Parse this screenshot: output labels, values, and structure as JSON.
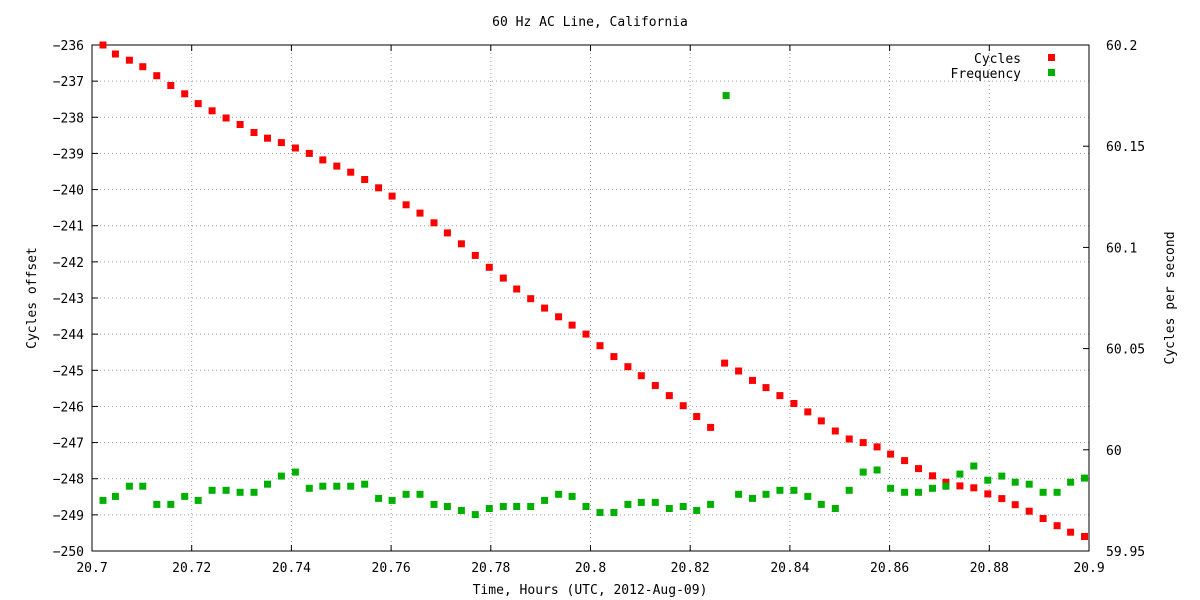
{
  "chart_data": {
    "type": "scatter",
    "title": "60 Hz AC Line, California",
    "xlabel": "Time, Hours (UTC, 2012-Aug-09)",
    "ylabel": "Cycles offset",
    "y2label": "Cycles per second",
    "xlim": [
      20.7,
      20.9
    ],
    "ylim": [
      -250,
      -236
    ],
    "y2lim": [
      59.95,
      60.2
    ],
    "x_ticks": [
      "20.7",
      "20.72",
      "20.74",
      "20.76",
      "20.78",
      "20.8",
      "20.82",
      "20.84",
      "20.86",
      "20.88",
      "20.9"
    ],
    "y_ticks": [
      "-250",
      "-249",
      "-248",
      "-247",
      "-246",
      "-245",
      "-244",
      "-243",
      "-242",
      "-241",
      "-240",
      "-239",
      "-238",
      "-237",
      "-236"
    ],
    "y2_ticks": [
      "59.95",
      "60",
      "60.05",
      "60.1",
      "60.15",
      "60.2"
    ],
    "grid": true,
    "legend": "top-right",
    "series": [
      {
        "name": "Cycles",
        "axis": "left",
        "color": "#ff0000",
        "x": [
          20.7022,
          20.7047,
          20.7075,
          20.7102,
          20.713,
          20.7158,
          20.7186,
          20.7213,
          20.7241,
          20.7269,
          20.7297,
          20.7325,
          20.7352,
          20.738,
          20.7408,
          20.7436,
          20.7463,
          20.7491,
          20.7519,
          20.7547,
          20.7575,
          20.7602,
          20.763,
          20.7658,
          20.7686,
          20.7713,
          20.7741,
          20.7769,
          20.7797,
          20.7825,
          20.7852,
          20.788,
          20.7908,
          20.7936,
          20.7963,
          20.7991,
          20.8019,
          20.8047,
          20.8075,
          20.8102,
          20.813,
          20.8158,
          20.8186,
          20.8213,
          20.8241,
          20.8269,
          20.8297,
          20.8325,
          20.8352,
          20.838,
          20.8408,
          20.8436,
          20.8463,
          20.8491,
          20.8519,
          20.8547,
          20.8575,
          20.8602,
          20.863,
          20.8658,
          20.8686,
          20.8713,
          20.8741,
          20.8769,
          20.8797,
          20.8825,
          20.8852,
          20.888,
          20.8908,
          20.8936,
          20.8963,
          20.8991
        ],
        "y": [
          -236.0,
          -236.25,
          -236.42,
          -236.6,
          -236.85,
          -237.12,
          -237.35,
          -237.62,
          -237.82,
          -238.02,
          -238.2,
          -238.42,
          -238.58,
          -238.7,
          -238.85,
          -239.0,
          -239.18,
          -239.35,
          -239.52,
          -239.72,
          -239.95,
          -240.18,
          -240.42,
          -240.65,
          -240.92,
          -241.2,
          -241.5,
          -241.82,
          -242.15,
          -242.45,
          -242.75,
          -243.02,
          -243.28,
          -243.52,
          -243.75,
          -244.0,
          -244.32,
          -244.62,
          -244.9,
          -245.15,
          -245.42,
          -245.7,
          -245.98,
          -246.28,
          -246.58,
          -244.8,
          -245.02,
          -245.28,
          -245.48,
          -245.7,
          -245.92,
          -246.15,
          -246.4,
          -246.68,
          -246.9,
          -247.0,
          -247.12,
          -247.32,
          -247.5,
          -247.72,
          -247.92,
          -248.1,
          -248.2,
          -248.25,
          -248.42,
          -248.55,
          -248.72,
          -248.9,
          -249.1,
          -249.3,
          -249.48,
          -249.6
        ]
      },
      {
        "name": "Frequency",
        "axis": "right",
        "color": "#00b000",
        "x": [
          20.7022,
          20.7047,
          20.7075,
          20.7102,
          20.713,
          20.7158,
          20.7186,
          20.7213,
          20.7241,
          20.7269,
          20.7297,
          20.7325,
          20.7352,
          20.738,
          20.7408,
          20.7436,
          20.7463,
          20.7491,
          20.7519,
          20.7547,
          20.7575,
          20.7602,
          20.763,
          20.7658,
          20.7686,
          20.7713,
          20.7741,
          20.7769,
          20.7797,
          20.7825,
          20.7852,
          20.788,
          20.7908,
          20.7936,
          20.7963,
          20.7991,
          20.8019,
          20.8047,
          20.8075,
          20.8102,
          20.813,
          20.8158,
          20.8186,
          20.8213,
          20.8241,
          20.8272,
          20.8297,
          20.8325,
          20.8352,
          20.838,
          20.8408,
          20.8436,
          20.8463,
          20.8491,
          20.8519,
          20.8547,
          20.8575,
          20.8602,
          20.863,
          20.8658,
          20.8686,
          20.8713,
          20.8741,
          20.8769,
          20.8797,
          20.8825,
          20.8852,
          20.888,
          20.8908,
          20.8936,
          20.8963,
          20.8991
        ],
        "y": [
          59.975,
          59.977,
          59.982,
          59.982,
          59.973,
          59.973,
          59.977,
          59.975,
          59.98,
          59.98,
          59.979,
          59.979,
          59.983,
          59.987,
          59.989,
          59.981,
          59.982,
          59.982,
          59.982,
          59.983,
          59.976,
          59.975,
          59.978,
          59.978,
          59.973,
          59.972,
          59.97,
          59.968,
          59.971,
          59.972,
          59.972,
          59.972,
          59.975,
          59.978,
          59.977,
          59.972,
          59.969,
          59.969,
          59.973,
          59.974,
          59.974,
          59.971,
          59.972,
          59.97,
          59.973,
          60.175,
          59.978,
          59.976,
          59.978,
          59.98,
          59.98,
          59.977,
          59.973,
          59.971,
          59.98,
          59.989,
          59.99,
          59.981,
          59.979,
          59.979,
          59.981,
          59.982,
          59.988,
          59.992,
          59.985,
          59.987,
          59.984,
          59.983,
          59.979,
          59.979,
          59.984,
          59.986
        ]
      }
    ]
  }
}
